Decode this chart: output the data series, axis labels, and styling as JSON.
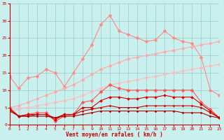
{
  "x": [
    0,
    1,
    2,
    3,
    4,
    5,
    6,
    7,
    8,
    9,
    10,
    11,
    12,
    13,
    14,
    15,
    16,
    17,
    18,
    19,
    20,
    21,
    22,
    23
  ],
  "series": [
    {
      "label": "s1_pink_spiky",
      "color": "#ff8888",
      "linewidth": 0.8,
      "markersize": 2.5,
      "marker": "D",
      "y": [
        14,
        10.5,
        13.5,
        14,
        16,
        15,
        11,
        15,
        19,
        23,
        29,
        31.5,
        27,
        26,
        25,
        24,
        24.5,
        27,
        25,
        24,
        23.5,
        19.5,
        10,
        8.5
      ]
    },
    {
      "label": "s2_pink_trend1",
      "color": "#ffaaaa",
      "linewidth": 0.8,
      "markersize": 2.5,
      "marker": "D",
      "y": [
        5,
        5.5,
        6.5,
        7.5,
        8.5,
        9.5,
        10.5,
        11.5,
        13,
        14.5,
        16,
        17,
        18,
        19,
        19.5,
        20,
        20.5,
        21,
        21.5,
        22,
        22.5,
        23,
        23.5,
        24
      ]
    },
    {
      "label": "s3_pink_trend2",
      "color": "#ffbbbb",
      "linewidth": 0.8,
      "markersize": 2.5,
      "marker": "D",
      "y": [
        4,
        4.5,
        5,
        5.5,
        6,
        6.5,
        7,
        7.5,
        8.5,
        9.5,
        10.5,
        11.5,
        12,
        12.5,
        13,
        13.5,
        14,
        14.5,
        15,
        15.5,
        16,
        16.5,
        17,
        17.5
      ]
    },
    {
      "label": "s4_mid_red",
      "color": "#ff5555",
      "linewidth": 0.8,
      "markersize": 2.5,
      "marker": "D",
      "y": [
        5,
        2.5,
        3,
        3.5,
        3.5,
        1,
        2.5,
        3,
        6.5,
        7,
        9.5,
        11.5,
        10.5,
        10,
        10,
        10,
        10,
        10,
        10,
        10,
        10,
        6.5,
        4.5,
        2
      ]
    },
    {
      "label": "s5_dark_red1",
      "color": "#dd0000",
      "linewidth": 0.8,
      "markersize": 2.0,
      "marker": "D",
      "y": [
        4.5,
        2.5,
        3,
        3,
        3,
        1.5,
        3,
        3,
        5,
        5,
        7,
        8,
        8,
        7.5,
        7.5,
        8,
        8,
        8.5,
        8,
        8,
        8,
        6,
        4,
        2
      ]
    },
    {
      "label": "s6_dark_red2",
      "color": "#cc0000",
      "linewidth": 0.8,
      "markersize": 1.5,
      "marker": "D",
      "y": [
        4.5,
        2.5,
        2.5,
        3,
        3,
        2,
        3,
        3,
        4,
        4.5,
        5,
        5.5,
        5,
        5,
        5,
        5.5,
        5.5,
        5.5,
        5.5,
        5.5,
        5.5,
        5,
        3.5,
        2
      ]
    },
    {
      "label": "s7_darkest",
      "color": "#aa0000",
      "linewidth": 0.8,
      "markersize": 1.5,
      "marker": "D",
      "y": [
        4,
        2.5,
        2.5,
        2.5,
        2.5,
        2,
        2.5,
        2.5,
        3,
        3.5,
        4,
        4,
        4,
        4,
        4,
        4,
        4,
        4,
        4,
        3.5,
        3.5,
        3.5,
        2.5,
        2
      ]
    }
  ],
  "xlabel": "Vent moyen/en rafales ( km/h )",
  "xlim": [
    0,
    23
  ],
  "ylim": [
    0,
    35
  ],
  "yticks": [
    0,
    5,
    10,
    15,
    20,
    25,
    30,
    35
  ],
  "xticks": [
    0,
    1,
    2,
    3,
    4,
    5,
    6,
    7,
    8,
    9,
    10,
    11,
    12,
    13,
    14,
    15,
    16,
    17,
    18,
    19,
    20,
    21,
    22,
    23
  ],
  "bg_color": "#caf0ee",
  "grid_color": "#99cccc",
  "tick_color": "#cc0000",
  "xlabel_color": "#cc0000"
}
